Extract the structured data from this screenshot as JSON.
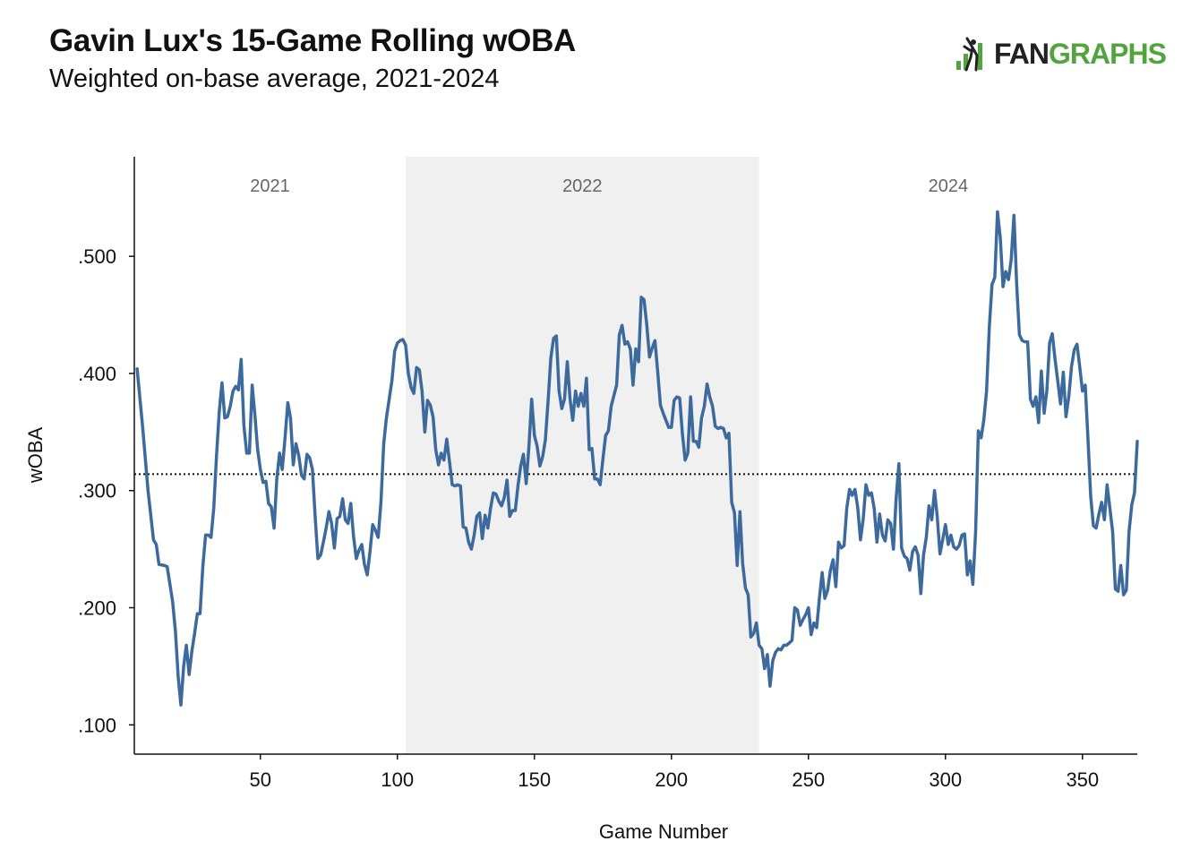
{
  "header": {
    "title": "Gavin Lux's 15-Game Rolling wOBA",
    "subtitle": "Weighted on-base average, 2021-2024"
  },
  "logo": {
    "fan": "FAN",
    "graphs": "GRAPHS",
    "color": "#52a43f"
  },
  "chart_data": {
    "type": "line",
    "xlabel": "Game Number",
    "ylabel": "wOBA",
    "xlim": [
      4,
      370
    ],
    "ylim": [
      0.075,
      0.585
    ],
    "x_ticks": [
      50,
      100,
      150,
      200,
      250,
      300,
      350
    ],
    "y_ticks": [
      0.1,
      0.2,
      0.3,
      0.4,
      0.5
    ],
    "y_tick_labels": [
      ".100",
      ".200",
      ".300",
      ".400",
      ".500"
    ],
    "reference_line": {
      "y": 0.314,
      "style": "dotted"
    },
    "line_color": "#3d6a9d",
    "seasons": [
      {
        "label": "2021",
        "start": 4,
        "end": 103,
        "shaded": false
      },
      {
        "label": "2022",
        "start": 103,
        "end": 232,
        "shaded": true
      },
      {
        "label": "2024",
        "start": 232,
        "end": 370,
        "shaded": false
      }
    ],
    "points": [
      [
        5,
        0.404
      ],
      [
        7,
        0.355
      ],
      [
        9,
        0.3
      ],
      [
        11,
        0.258
      ],
      [
        12,
        0.254
      ],
      [
        13,
        0.237
      ],
      [
        15,
        0.236
      ],
      [
        16,
        0.235
      ],
      [
        18,
        0.205
      ],
      [
        19,
        0.18
      ],
      [
        20,
        0.141
      ],
      [
        21,
        0.117
      ],
      [
        22,
        0.15
      ],
      [
        23,
        0.168
      ],
      [
        24,
        0.143
      ],
      [
        25,
        0.163
      ],
      [
        26,
        0.178
      ],
      [
        27,
        0.195
      ],
      [
        28,
        0.195
      ],
      [
        29,
        0.235
      ],
      [
        30,
        0.262
      ],
      [
        31,
        0.262
      ],
      [
        32,
        0.26
      ],
      [
        33,
        0.285
      ],
      [
        34,
        0.33
      ],
      [
        35,
        0.368
      ],
      [
        36,
        0.392
      ],
      [
        37,
        0.362
      ],
      [
        38,
        0.363
      ],
      [
        39,
        0.372
      ],
      [
        40,
        0.385
      ],
      [
        41,
        0.389
      ],
      [
        42,
        0.386
      ],
      [
        43,
        0.412
      ],
      [
        44,
        0.355
      ],
      [
        45,
        0.332
      ],
      [
        46,
        0.332
      ],
      [
        47,
        0.39
      ],
      [
        48,
        0.365
      ],
      [
        49,
        0.335
      ],
      [
        50,
        0.318
      ],
      [
        51,
        0.307
      ],
      [
        52,
        0.308
      ],
      [
        53,
        0.289
      ],
      [
        54,
        0.286
      ],
      [
        55,
        0.268
      ],
      [
        56,
        0.31
      ],
      [
        57,
        0.332
      ],
      [
        58,
        0.318
      ],
      [
        59,
        0.345
      ],
      [
        60,
        0.375
      ],
      [
        61,
        0.362
      ],
      [
        62,
        0.322
      ],
      [
        63,
        0.34
      ],
      [
        64,
        0.33
      ],
      [
        65,
        0.313
      ],
      [
        66,
        0.31
      ],
      [
        67,
        0.331
      ],
      [
        68,
        0.328
      ],
      [
        69,
        0.318
      ],
      [
        70,
        0.277
      ],
      [
        71,
        0.242
      ],
      [
        72,
        0.245
      ],
      [
        73,
        0.256
      ],
      [
        74,
        0.268
      ],
      [
        75,
        0.282
      ],
      [
        76,
        0.272
      ],
      [
        77,
        0.251
      ],
      [
        78,
        0.276
      ],
      [
        79,
        0.278
      ],
      [
        80,
        0.293
      ],
      [
        81,
        0.275
      ],
      [
        82,
        0.272
      ],
      [
        83,
        0.289
      ],
      [
        84,
        0.261
      ],
      [
        85,
        0.242
      ],
      [
        86,
        0.249
      ],
      [
        87,
        0.254
      ],
      [
        88,
        0.237
      ],
      [
        89,
        0.228
      ],
      [
        90,
        0.248
      ],
      [
        91,
        0.271
      ],
      [
        92,
        0.266
      ],
      [
        93,
        0.26
      ],
      [
        94,
        0.29
      ],
      [
        95,
        0.34
      ],
      [
        96,
        0.362
      ],
      [
        97,
        0.378
      ],
      [
        98,
        0.394
      ],
      [
        99,
        0.419
      ],
      [
        100,
        0.426
      ],
      [
        101,
        0.428
      ],
      [
        102,
        0.429
      ],
      [
        103,
        0.424
      ],
      [
        104,
        0.4
      ],
      [
        105,
        0.388
      ],
      [
        106,
        0.383
      ],
      [
        107,
        0.405
      ],
      [
        108,
        0.403
      ],
      [
        109,
        0.385
      ],
      [
        110,
        0.35
      ],
      [
        111,
        0.377
      ],
      [
        112,
        0.373
      ],
      [
        113,
        0.363
      ],
      [
        114,
        0.335
      ],
      [
        115,
        0.322
      ],
      [
        116,
        0.332
      ],
      [
        117,
        0.326
      ],
      [
        118,
        0.344
      ],
      [
        119,
        0.325
      ],
      [
        120,
        0.305
      ],
      [
        121,
        0.304
      ],
      [
        122,
        0.305
      ],
      [
        123,
        0.304
      ],
      [
        124,
        0.269
      ],
      [
        125,
        0.268
      ],
      [
        126,
        0.256
      ],
      [
        127,
        0.25
      ],
      [
        128,
        0.262
      ],
      [
        129,
        0.278
      ],
      [
        130,
        0.281
      ],
      [
        131,
        0.259
      ],
      [
        132,
        0.279
      ],
      [
        133,
        0.268
      ],
      [
        134,
        0.285
      ],
      [
        135,
        0.298
      ],
      [
        136,
        0.297
      ],
      [
        137,
        0.291
      ],
      [
        138,
        0.287
      ],
      [
        139,
        0.294
      ],
      [
        140,
        0.309
      ],
      [
        141,
        0.278
      ],
      [
        142,
        0.283
      ],
      [
        143,
        0.283
      ],
      [
        144,
        0.304
      ],
      [
        145,
        0.321
      ],
      [
        146,
        0.331
      ],
      [
        147,
        0.306
      ],
      [
        148,
        0.338
      ],
      [
        149,
        0.378
      ],
      [
        150,
        0.347
      ],
      [
        151,
        0.338
      ],
      [
        152,
        0.321
      ],
      [
        153,
        0.329
      ],
      [
        154,
        0.343
      ],
      [
        155,
        0.377
      ],
      [
        156,
        0.413
      ],
      [
        157,
        0.43
      ],
      [
        158,
        0.432
      ],
      [
        159,
        0.385
      ],
      [
        160,
        0.37
      ],
      [
        161,
        0.378
      ],
      [
        162,
        0.41
      ],
      [
        163,
        0.378
      ],
      [
        164,
        0.36
      ],
      [
        165,
        0.385
      ],
      [
        166,
        0.372
      ],
      [
        167,
        0.383
      ],
      [
        168,
        0.372
      ],
      [
        169,
        0.396
      ],
      [
        170,
        0.335
      ],
      [
        171,
        0.336
      ],
      [
        172,
        0.31
      ],
      [
        173,
        0.31
      ],
      [
        174,
        0.305
      ],
      [
        175,
        0.327
      ],
      [
        176,
        0.347
      ],
      [
        177,
        0.351
      ],
      [
        178,
        0.372
      ],
      [
        179,
        0.381
      ],
      [
        180,
        0.39
      ],
      [
        181,
        0.433
      ],
      [
        182,
        0.441
      ],
      [
        183,
        0.425
      ],
      [
        184,
        0.427
      ],
      [
        185,
        0.421
      ],
      [
        186,
        0.39
      ],
      [
        187,
        0.421
      ],
      [
        188,
        0.41
      ],
      [
        189,
        0.465
      ],
      [
        190,
        0.463
      ],
      [
        191,
        0.442
      ],
      [
        192,
        0.414
      ],
      [
        193,
        0.422
      ],
      [
        194,
        0.428
      ],
      [
        195,
        0.401
      ],
      [
        196,
        0.373
      ],
      [
        197,
        0.366
      ],
      [
        198,
        0.36
      ],
      [
        199,
        0.354
      ],
      [
        200,
        0.354
      ],
      [
        201,
        0.377
      ],
      [
        202,
        0.38
      ],
      [
        203,
        0.379
      ],
      [
        204,
        0.349
      ],
      [
        205,
        0.326
      ],
      [
        206,
        0.332
      ],
      [
        207,
        0.38
      ],
      [
        208,
        0.342
      ],
      [
        209,
        0.342
      ],
      [
        210,
        0.337
      ],
      [
        211,
        0.362
      ],
      [
        212,
        0.372
      ],
      [
        213,
        0.391
      ],
      [
        214,
        0.38
      ],
      [
        215,
        0.372
      ],
      [
        216,
        0.355
      ],
      [
        217,
        0.353
      ],
      [
        218,
        0.354
      ],
      [
        219,
        0.353
      ],
      [
        220,
        0.345
      ],
      [
        221,
        0.349
      ],
      [
        222,
        0.29
      ],
      [
        223,
        0.281
      ],
      [
        224,
        0.236
      ],
      [
        225,
        0.282
      ],
      [
        226,
        0.238
      ],
      [
        227,
        0.217
      ],
      [
        228,
        0.211
      ],
      [
        229,
        0.175
      ],
      [
        230,
        0.178
      ],
      [
        231,
        0.187
      ],
      [
        232,
        0.168
      ],
      [
        233,
        0.165
      ],
      [
        234,
        0.148
      ],
      [
        235,
        0.16
      ],
      [
        236,
        0.133
      ],
      [
        237,
        0.155
      ],
      [
        238,
        0.162
      ],
      [
        239,
        0.165
      ],
      [
        240,
        0.164
      ],
      [
        241,
        0.168
      ],
      [
        242,
        0.168
      ],
      [
        243,
        0.17
      ],
      [
        244,
        0.172
      ],
      [
        245,
        0.2
      ],
      [
        246,
        0.198
      ],
      [
        247,
        0.185
      ],
      [
        248,
        0.19
      ],
      [
        249,
        0.194
      ],
      [
        250,
        0.2
      ],
      [
        251,
        0.177
      ],
      [
        252,
        0.187
      ],
      [
        253,
        0.183
      ],
      [
        254,
        0.208
      ],
      [
        255,
        0.23
      ],
      [
        256,
        0.208
      ],
      [
        257,
        0.215
      ],
      [
        258,
        0.232
      ],
      [
        259,
        0.241
      ],
      [
        260,
        0.218
      ],
      [
        261,
        0.256
      ],
      [
        262,
        0.251
      ],
      [
        263,
        0.253
      ],
      [
        264,
        0.285
      ],
      [
        265,
        0.301
      ],
      [
        266,
        0.296
      ],
      [
        267,
        0.301
      ],
      [
        268,
        0.285
      ],
      [
        269,
        0.258
      ],
      [
        270,
        0.276
      ],
      [
        271,
        0.305
      ],
      [
        272,
        0.296
      ],
      [
        273,
        0.298
      ],
      [
        274,
        0.285
      ],
      [
        275,
        0.256
      ],
      [
        276,
        0.28
      ],
      [
        277,
        0.262
      ],
      [
        278,
        0.257
      ],
      [
        279,
        0.275
      ],
      [
        280,
        0.272
      ],
      [
        281,
        0.25
      ],
      [
        282,
        0.293
      ],
      [
        283,
        0.323
      ],
      [
        284,
        0.251
      ],
      [
        285,
        0.244
      ],
      [
        286,
        0.242
      ],
      [
        287,
        0.232
      ],
      [
        288,
        0.248
      ],
      [
        289,
        0.252
      ],
      [
        290,
        0.245
      ],
      [
        291,
        0.212
      ],
      [
        292,
        0.245
      ],
      [
        293,
        0.26
      ],
      [
        294,
        0.287
      ],
      [
        295,
        0.275
      ],
      [
        296,
        0.3
      ],
      [
        297,
        0.278
      ],
      [
        298,
        0.246
      ],
      [
        299,
        0.258
      ],
      [
        300,
        0.271
      ],
      [
        301,
        0.254
      ],
      [
        302,
        0.262
      ],
      [
        303,
        0.252
      ],
      [
        304,
        0.25
      ],
      [
        305,
        0.253
      ],
      [
        306,
        0.262
      ],
      [
        307,
        0.263
      ],
      [
        308,
        0.228
      ],
      [
        309,
        0.24
      ],
      [
        310,
        0.22
      ],
      [
        311,
        0.265
      ],
      [
        312,
        0.351
      ],
      [
        313,
        0.345
      ],
      [
        314,
        0.36
      ],
      [
        315,
        0.385
      ],
      [
        316,
        0.44
      ],
      [
        317,
        0.476
      ],
      [
        318,
        0.482
      ],
      [
        319,
        0.538
      ],
      [
        320,
        0.516
      ],
      [
        321,
        0.474
      ],
      [
        322,
        0.487
      ],
      [
        323,
        0.48
      ],
      [
        324,
        0.497
      ],
      [
        325,
        0.535
      ],
      [
        326,
        0.475
      ],
      [
        327,
        0.433
      ],
      [
        328,
        0.428
      ],
      [
        329,
        0.427
      ],
      [
        330,
        0.427
      ],
      [
        331,
        0.378
      ],
      [
        332,
        0.372
      ],
      [
        333,
        0.38
      ],
      [
        334,
        0.358
      ],
      [
        335,
        0.402
      ],
      [
        336,
        0.366
      ],
      [
        337,
        0.385
      ],
      [
        338,
        0.426
      ],
      [
        339,
        0.434
      ],
      [
        340,
        0.412
      ],
      [
        341,
        0.393
      ],
      [
        342,
        0.374
      ],
      [
        343,
        0.401
      ],
      [
        344,
        0.363
      ],
      [
        345,
        0.38
      ],
      [
        346,
        0.406
      ],
      [
        347,
        0.42
      ],
      [
        348,
        0.425
      ],
      [
        349,
        0.406
      ],
      [
        350,
        0.385
      ],
      [
        351,
        0.39
      ],
      [
        352,
        0.345
      ],
      [
        353,
        0.295
      ],
      [
        354,
        0.27
      ],
      [
        355,
        0.268
      ],
      [
        356,
        0.28
      ],
      [
        357,
        0.29
      ],
      [
        358,
        0.275
      ],
      [
        359,
        0.305
      ],
      [
        360,
        0.285
      ],
      [
        361,
        0.265
      ],
      [
        362,
        0.216
      ],
      [
        363,
        0.214
      ],
      [
        364,
        0.236
      ],
      [
        365,
        0.211
      ],
      [
        366,
        0.215
      ],
      [
        367,
        0.265
      ],
      [
        368,
        0.288
      ],
      [
        369,
        0.298
      ],
      [
        370,
        0.342
      ]
    ]
  }
}
